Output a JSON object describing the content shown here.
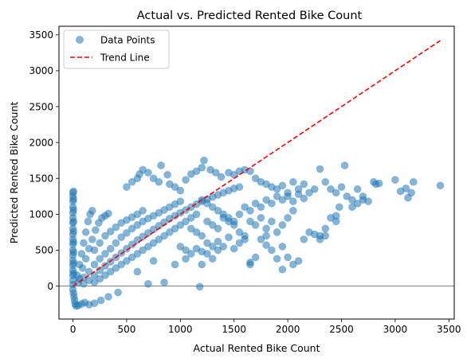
{
  "chart_data": {
    "type": "scatter",
    "title": "Actual vs. Predicted Rented Bike Count",
    "xlabel": "Actual Rented Bike Count",
    "ylabel": "Predicted Rented Bike Count",
    "xlim": [
      -130,
      3550
    ],
    "ylim": [
      -460,
      3620
    ],
    "xticks": [
      0,
      500,
      1000,
      1500,
      2000,
      2500,
      3000,
      3500
    ],
    "yticks": [
      0,
      500,
      1000,
      1500,
      2000,
      2500,
      3000,
      3500
    ],
    "grid": false,
    "legend_position": "top-left",
    "series": [
      {
        "name": "Data Points",
        "kind": "scatter",
        "color": "#1f77b4",
        "alpha": 0.55,
        "points": [
          [
            0,
            1300
          ],
          [
            0,
            1250
          ],
          [
            0,
            1180
          ],
          [
            0,
            1100
          ],
          [
            0,
            1020
          ],
          [
            0,
            950
          ],
          [
            0,
            880
          ],
          [
            0,
            800
          ],
          [
            0,
            720
          ],
          [
            0,
            650
          ],
          [
            0,
            580
          ],
          [
            0,
            500
          ],
          [
            0,
            430
          ],
          [
            0,
            360
          ],
          [
            0,
            290
          ],
          [
            0,
            220
          ],
          [
            0,
            150
          ],
          [
            0,
            80
          ],
          [
            0,
            20
          ],
          [
            0,
            -50
          ],
          [
            5,
            1320
          ],
          [
            5,
            1210
          ],
          [
            5,
            1060
          ],
          [
            5,
            900
          ],
          [
            5,
            760
          ],
          [
            5,
            610
          ],
          [
            5,
            470
          ],
          [
            5,
            320
          ],
          [
            5,
            180
          ],
          [
            5,
            -100
          ],
          [
            10,
            -150
          ],
          [
            15,
            -200
          ],
          [
            20,
            -250
          ],
          [
            30,
            -280
          ],
          [
            50,
            -270
          ],
          [
            80,
            -250
          ],
          [
            110,
            -230
          ],
          [
            150,
            -260
          ],
          [
            200,
            -240
          ],
          [
            260,
            -200
          ],
          [
            330,
            -150
          ],
          [
            420,
            -90
          ],
          [
            40,
            150
          ],
          [
            60,
            300
          ],
          [
            80,
            450
          ],
          [
            100,
            600
          ],
          [
            120,
            750
          ],
          [
            140,
            900
          ],
          [
            160,
            1000
          ],
          [
            180,
            1050
          ],
          [
            60,
            100
          ],
          [
            90,
            250
          ],
          [
            120,
            380
          ],
          [
            150,
            520
          ],
          [
            180,
            650
          ],
          [
            210,
            780
          ],
          [
            240,
            880
          ],
          [
            270,
            950
          ],
          [
            300,
            980
          ],
          [
            330,
            1010
          ],
          [
            50,
            50
          ],
          [
            100,
            120
          ],
          [
            150,
            200
          ],
          [
            200,
            300
          ],
          [
            250,
            380
          ],
          [
            300,
            450
          ],
          [
            350,
            520
          ],
          [
            400,
            600
          ],
          [
            450,
            680
          ],
          [
            500,
            740
          ],
          [
            550,
            800
          ],
          [
            600,
            850
          ],
          [
            650,
            900
          ],
          [
            700,
            940
          ],
          [
            750,
            980
          ],
          [
            800,
            1020
          ],
          [
            850,
            1060
          ],
          [
            900,
            1100
          ],
          [
            950,
            1140
          ],
          [
            1000,
            1180
          ],
          [
            100,
            30
          ],
          [
            150,
            80
          ],
          [
            200,
            150
          ],
          [
            250,
            220
          ],
          [
            300,
            280
          ],
          [
            350,
            340
          ],
          [
            400,
            400
          ],
          [
            450,
            460
          ],
          [
            500,
            520
          ],
          [
            550,
            580
          ],
          [
            600,
            640
          ],
          [
            650,
            690
          ],
          [
            700,
            740
          ],
          [
            750,
            790
          ],
          [
            800,
            840
          ],
          [
            850,
            890
          ],
          [
            900,
            940
          ],
          [
            950,
            980
          ],
          [
            1000,
            1020
          ],
          [
            1050,
            1060
          ],
          [
            1100,
            1100
          ],
          [
            1150,
            1140
          ],
          [
            1200,
            1180
          ],
          [
            1250,
            1210
          ],
          [
            1300,
            1240
          ],
          [
            1350,
            1270
          ],
          [
            1400,
            1300
          ],
          [
            1450,
            1330
          ],
          [
            1500,
            1360
          ],
          [
            1550,
            1380
          ],
          [
            200,
            500
          ],
          [
            250,
            600
          ],
          [
            300,
            700
          ],
          [
            350,
            760
          ],
          [
            400,
            820
          ],
          [
            450,
            880
          ],
          [
            500,
            920
          ],
          [
            550,
            960
          ],
          [
            600,
            1000
          ],
          [
            650,
            1050
          ],
          [
            200,
            50
          ],
          [
            250,
            100
          ],
          [
            300,
            150
          ],
          [
            350,
            200
          ],
          [
            400,
            250
          ],
          [
            450,
            300
          ],
          [
            500,
            350
          ],
          [
            550,
            400
          ],
          [
            600,
            450
          ],
          [
            650,
            500
          ],
          [
            700,
            550
          ],
          [
            750,
            600
          ],
          [
            800,
            650
          ],
          [
            850,
            700
          ],
          [
            900,
            750
          ],
          [
            950,
            800
          ],
          [
            1000,
            850
          ],
          [
            1050,
            900
          ],
          [
            1100,
            950
          ],
          [
            1150,
            1000
          ],
          [
            500,
            1380
          ],
          [
            550,
            1450
          ],
          [
            600,
            1500
          ],
          [
            620,
            1560
          ],
          [
            650,
            1620
          ],
          [
            700,
            1580
          ],
          [
            750,
            1500
          ],
          [
            800,
            1450
          ],
          [
            820,
            1680
          ],
          [
            880,
            1550
          ],
          [
            900,
            1420
          ],
          [
            950,
            1380
          ],
          [
            1000,
            1330
          ],
          [
            1050,
            1480
          ],
          [
            1100,
            1560
          ],
          [
            1150,
            1600
          ],
          [
            1200,
            1650
          ],
          [
            1220,
            1750
          ],
          [
            1280,
            1620
          ],
          [
            1330,
            1580
          ],
          [
            1380,
            1520
          ],
          [
            1450,
            1580
          ],
          [
            1500,
            1550
          ],
          [
            1550,
            1600
          ],
          [
            1600,
            1620
          ],
          [
            1650,
            1600
          ],
          [
            1700,
            1500
          ],
          [
            1750,
            1450
          ],
          [
            1800,
            1420
          ],
          [
            1850,
            1380
          ],
          [
            1900,
            1350
          ],
          [
            1950,
            1400
          ],
          [
            2000,
            1300
          ],
          [
            2050,
            1450
          ],
          [
            2100,
            1350
          ],
          [
            2150,
            1420
          ],
          [
            2200,
            1300
          ],
          [
            2250,
            1350
          ],
          [
            2300,
            1630
          ],
          [
            2350,
            1450
          ],
          [
            2400,
            1350
          ],
          [
            2450,
            1300
          ],
          [
            2500,
            1380
          ],
          [
            2530,
            1680
          ],
          [
            2550,
            1250
          ],
          [
            2600,
            1200
          ],
          [
            2650,
            1350
          ],
          [
            2700,
            1250
          ],
          [
            2800,
            1450
          ],
          [
            2820,
            1420
          ],
          [
            1200,
            1200
          ],
          [
            1250,
            1150
          ],
          [
            1300,
            1100
          ],
          [
            1350,
            1050
          ],
          [
            1400,
            1000
          ],
          [
            1450,
            950
          ],
          [
            1500,
            900
          ],
          [
            1550,
            1000
          ],
          [
            1600,
            1100
          ],
          [
            1650,
            1050
          ],
          [
            1700,
            1150
          ],
          [
            1750,
            1100
          ],
          [
            1800,
            1200
          ],
          [
            1850,
            1150
          ],
          [
            1900,
            1250
          ],
          [
            1950,
            1200
          ],
          [
            2000,
            1250
          ],
          [
            2050,
            1180
          ],
          [
            2100,
            1280
          ],
          [
            2150,
            1220
          ],
          [
            1100,
            800
          ],
          [
            1150,
            750
          ],
          [
            1200,
            700
          ],
          [
            1250,
            900
          ],
          [
            1300,
            850
          ],
          [
            1350,
            800
          ],
          [
            1400,
            950
          ],
          [
            1450,
            900
          ],
          [
            1500,
            850
          ],
          [
            1550,
            750
          ],
          [
            1600,
            700
          ],
          [
            1650,
            900
          ],
          [
            1700,
            850
          ],
          [
            1750,
            950
          ],
          [
            1800,
            800
          ],
          [
            1850,
            900
          ],
          [
            1900,
            750
          ],
          [
            1950,
            850
          ],
          [
            2000,
            950
          ],
          [
            2050,
            1050
          ],
          [
            1000,
            550
          ],
          [
            1050,
            500
          ],
          [
            1100,
            450
          ],
          [
            1150,
            520
          ],
          [
            1200,
            480
          ],
          [
            1250,
            600
          ],
          [
            1300,
            550
          ],
          [
            1350,
            620
          ],
          [
            1400,
            550
          ],
          [
            1450,
            680
          ],
          [
            1500,
            520
          ],
          [
            1550,
            600
          ],
          [
            1600,
            650
          ],
          [
            1650,
            300
          ],
          [
            1700,
            400
          ],
          [
            1750,
            650
          ],
          [
            1800,
            700
          ],
          [
            1850,
            500
          ],
          [
            1900,
            380
          ],
          [
            1950,
            550
          ],
          [
            2000,
            400
          ],
          [
            2050,
            300
          ],
          [
            2100,
            350
          ],
          [
            2150,
            650
          ],
          [
            2200,
            750
          ],
          [
            2250,
            720
          ],
          [
            2300,
            700
          ],
          [
            2350,
            800
          ],
          [
            2400,
            950
          ],
          [
            2450,
            900
          ],
          [
            1180,
            -10
          ],
          [
            1650,
            330
          ],
          [
            1800,
            570
          ],
          [
            1950,
            230
          ],
          [
            2300,
            650
          ],
          [
            2350,
            700
          ],
          [
            2600,
            1100
          ],
          [
            2650,
            1150
          ],
          [
            2700,
            1200
          ],
          [
            2750,
            1180
          ],
          [
            3000,
            1480
          ],
          [
            3050,
            1320
          ],
          [
            3100,
            1360
          ],
          [
            3120,
            1230
          ],
          [
            3150,
            1300
          ],
          [
            3170,
            1450
          ],
          [
            3420,
            1400
          ],
          [
            2850,
            1430
          ],
          [
            2480,
            1100
          ],
          [
            2450,
            980
          ],
          [
            700,
            30
          ],
          [
            850,
            50
          ],
          [
            600,
            200
          ],
          [
            750,
            350
          ],
          [
            950,
            300
          ],
          [
            1050,
            380
          ],
          [
            1250,
            450
          ],
          [
            1300,
            380
          ],
          [
            1350,
            500
          ],
          [
            1200,
            300
          ]
        ]
      },
      {
        "name": "Trend Line",
        "kind": "line",
        "color": "#ff0000",
        "dash": "dashed",
        "points": [
          [
            0,
            0
          ],
          [
            3420,
            3420
          ]
        ]
      },
      {
        "name": "",
        "kind": "hline",
        "color": "#000000",
        "y": 0
      }
    ]
  }
}
